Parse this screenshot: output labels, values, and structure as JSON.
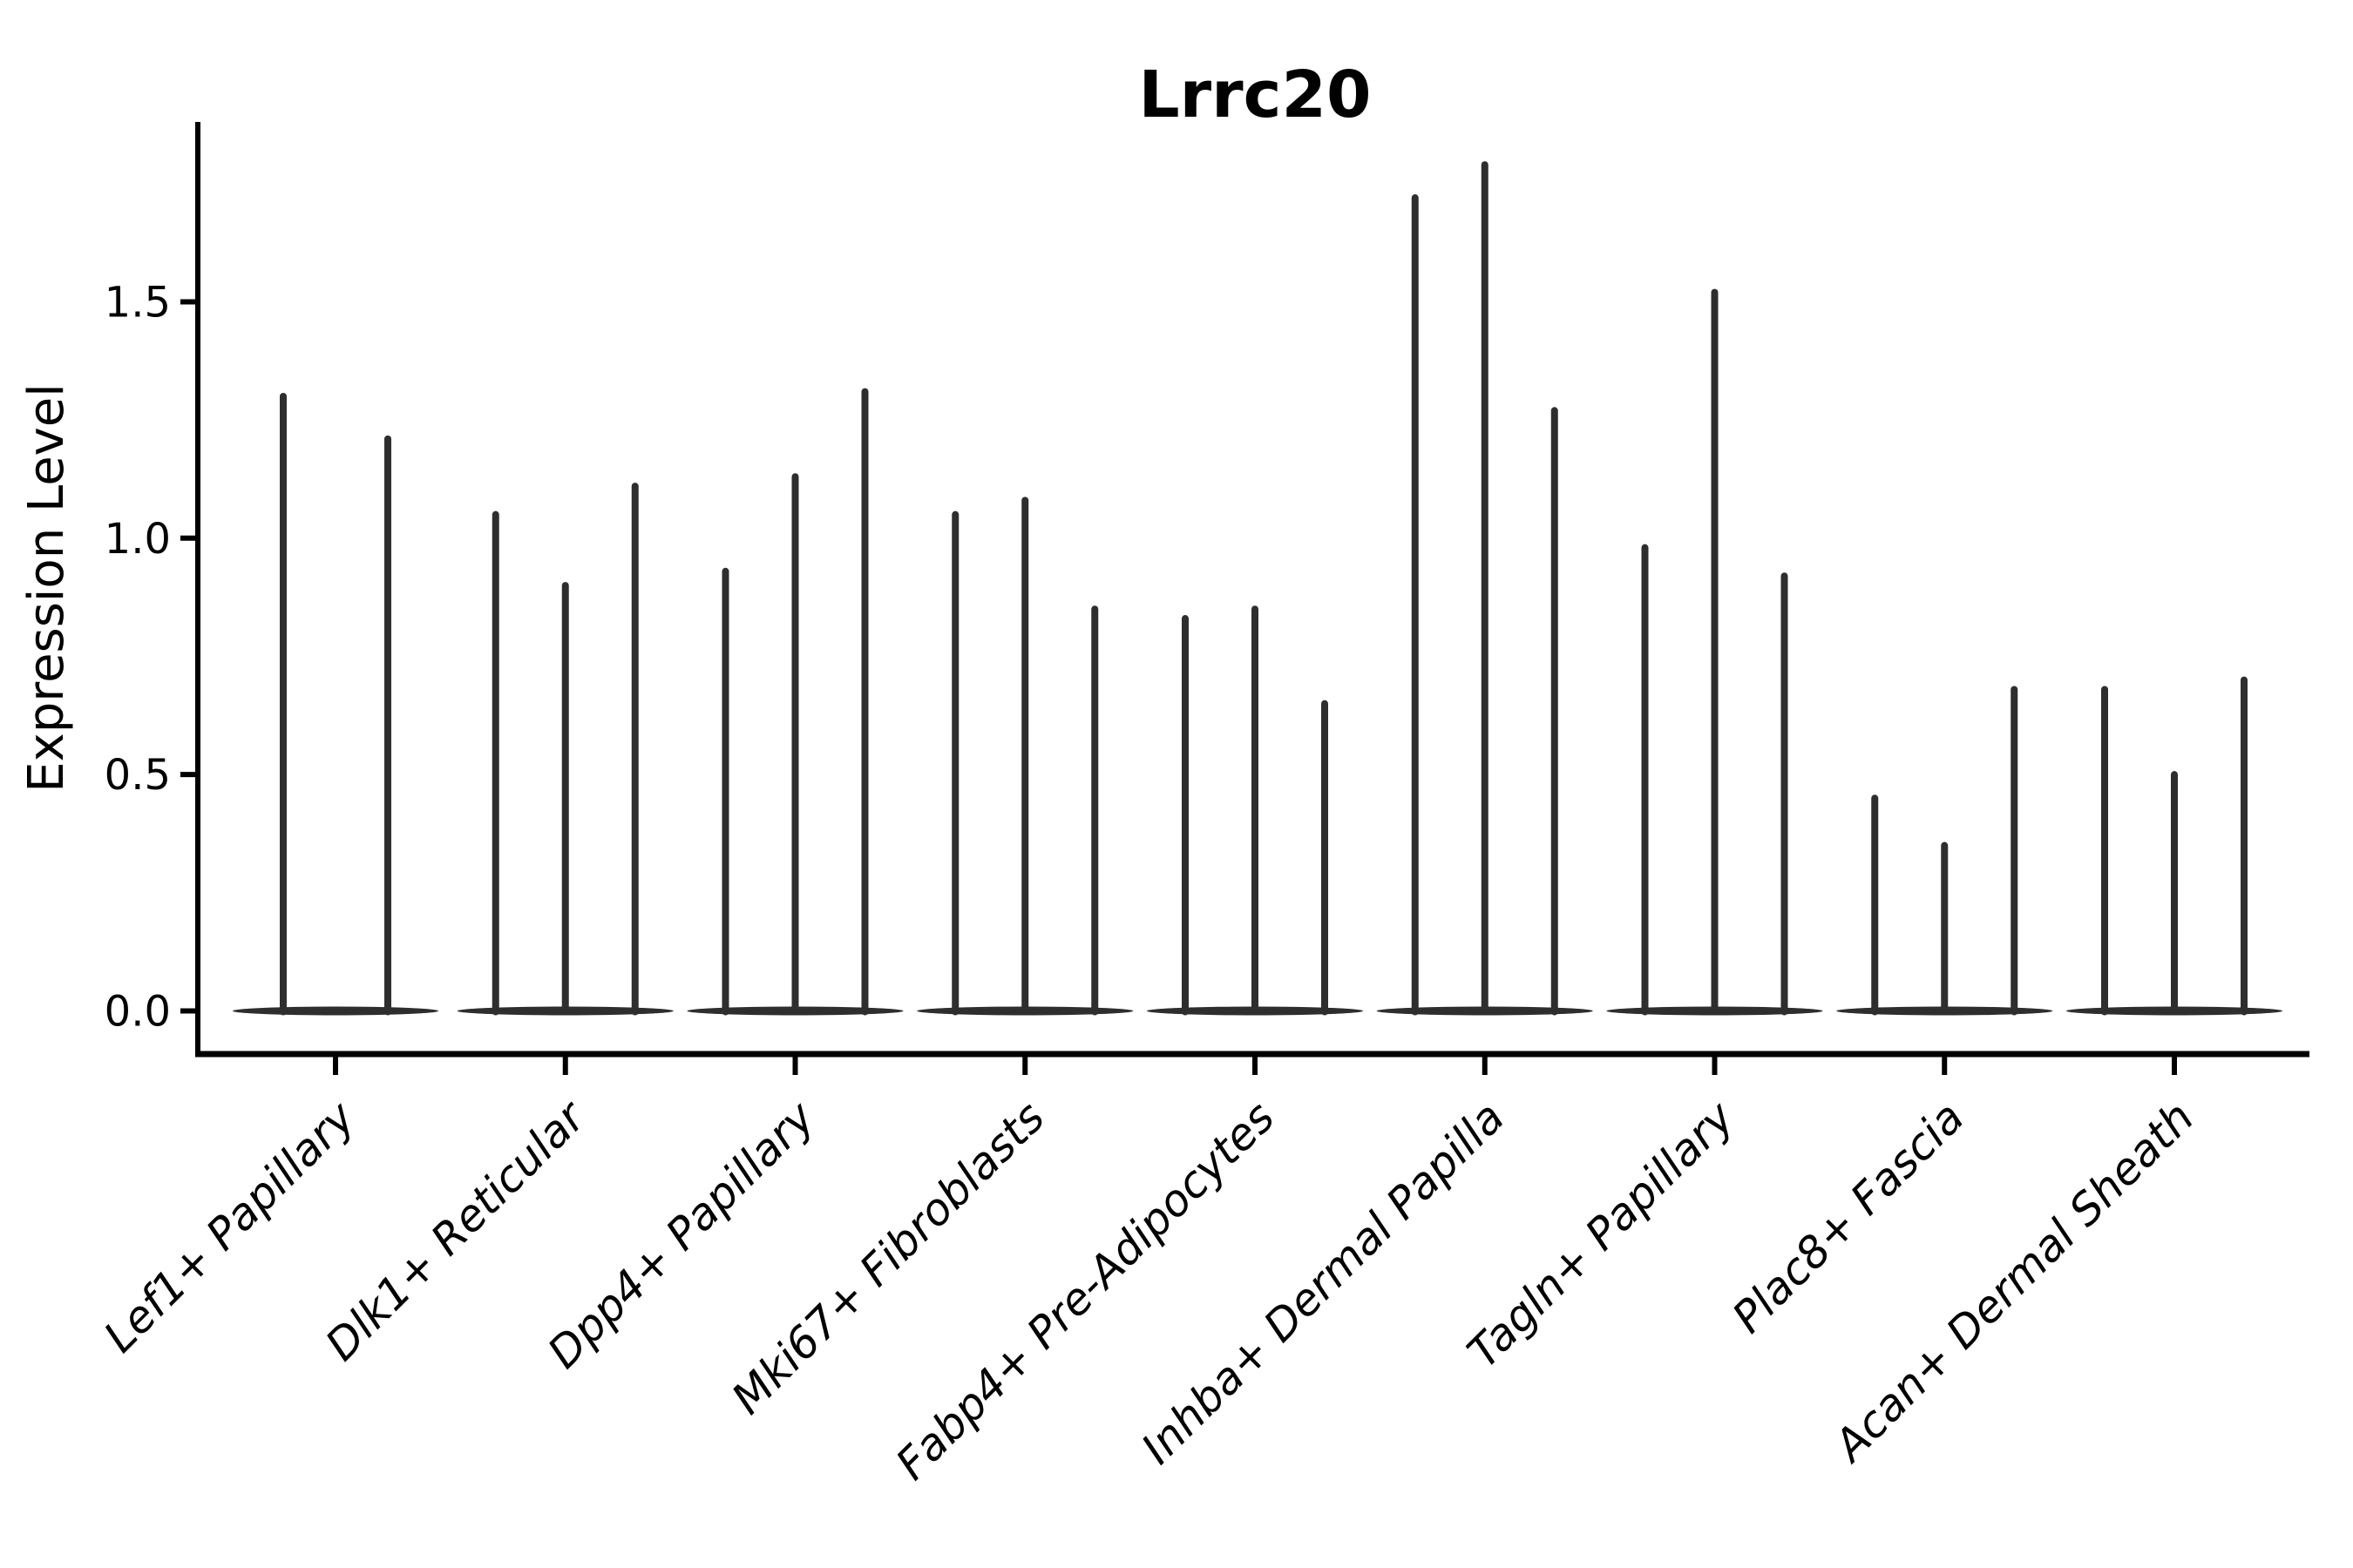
{
  "chart_data": {
    "type": "violin",
    "title": "Lrrc20",
    "ylabel": "Expression Level",
    "xlabel": "",
    "yticks": [
      0.0,
      0.5,
      1.0,
      1.5
    ],
    "ylim": [
      -0.09,
      1.88
    ],
    "grid": false,
    "legend": false,
    "description": "Stacked-violin style expression plot; each cell-type category shows 2-3 extremely thin violins (wide flat base at 0 with a thin spike up to the max expression value).",
    "groups": [
      {
        "category": "Lef1+ Papillary",
        "violin_max_values": [
          1.3,
          1.21
        ]
      },
      {
        "category": "Dlk1+ Reticular",
        "violin_max_values": [
          1.05,
          0.9,
          1.11
        ]
      },
      {
        "category": "Dpp4+ Papillary",
        "violin_max_values": [
          0.93,
          1.13,
          1.31
        ]
      },
      {
        "category": "Mki67+ Fibroblasts",
        "violin_max_values": [
          1.05,
          1.08,
          0.85
        ]
      },
      {
        "category": "Fabp4+ Pre-Adipocytes",
        "violin_max_values": [
          0.83,
          0.85,
          0.65
        ]
      },
      {
        "category": "Inhba+ Dermal Papilla",
        "violin_max_values": [
          1.72,
          1.79,
          1.27
        ]
      },
      {
        "category": "Tagln+ Papillary",
        "violin_max_values": [
          0.98,
          1.52,
          0.92
        ]
      },
      {
        "category": "Plac8+ Fascia",
        "violin_max_values": [
          0.45,
          0.35,
          0.68
        ]
      },
      {
        "category": "Acan+ Dermal Sheath",
        "violin_max_values": [
          0.68,
          0.5,
          0.7
        ]
      }
    ]
  },
  "colors": {
    "violin": "#2e2e2e",
    "axis": "#000000",
    "text": "#000000",
    "background": "#ffffff"
  }
}
